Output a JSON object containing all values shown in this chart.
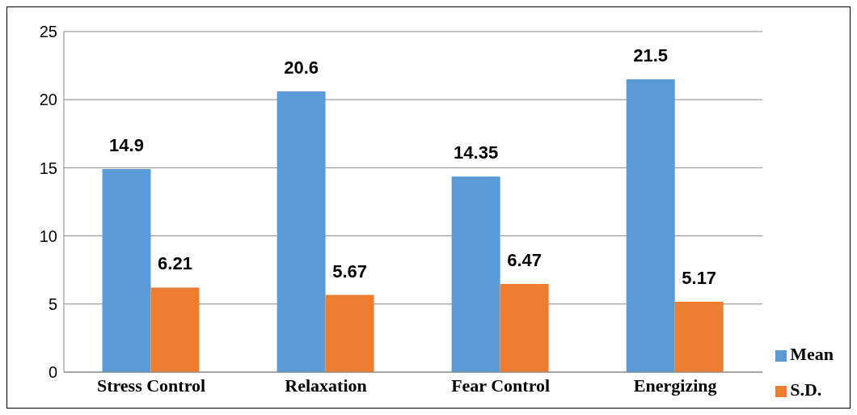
{
  "chart_data": {
    "type": "bar",
    "categories": [
      "Stress Control",
      "Relaxation",
      "Fear Control",
      "Energizing"
    ],
    "series": [
      {
        "name": "Mean",
        "color": "#5b9bd5",
        "values": [
          14.9,
          20.6,
          14.35,
          21.5
        ]
      },
      {
        "name": "S.D.",
        "color": "#ed7d31",
        "values": [
          6.21,
          5.67,
          6.47,
          5.17
        ]
      }
    ],
    "ylim": [
      0,
      25
    ],
    "yticks": [
      0,
      5,
      10,
      15,
      20,
      25
    ],
    "grid": "y",
    "legend": "bottom right",
    "data_labels": true
  }
}
